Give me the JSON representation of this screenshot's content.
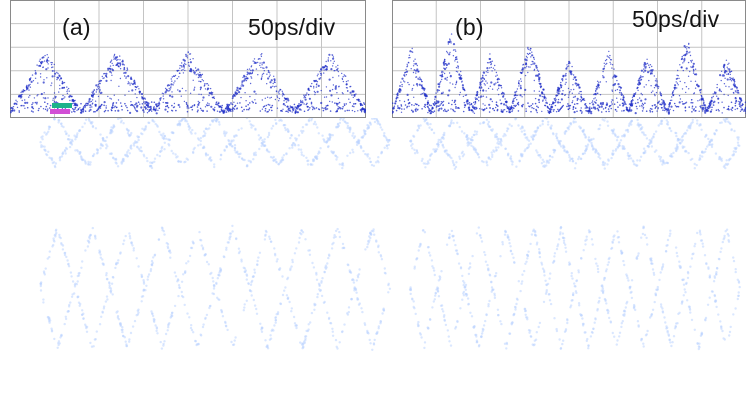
{
  "panels": [
    {
      "id": "a",
      "label": "(a)",
      "time_scale": "50ps/div",
      "peaks": 5
    },
    {
      "id": "b",
      "label": "(b)",
      "time_scale": "50ps/div",
      "peaks": 9
    }
  ],
  "colors": {
    "trace": "#2433c8",
    "trace_faded": "#bcd3ff",
    "grid": "#c4c4c4",
    "frame": "#8a8a8a",
    "legend": [
      "#1bb38a",
      "#d24fd6",
      "#3a8de0"
    ]
  }
}
